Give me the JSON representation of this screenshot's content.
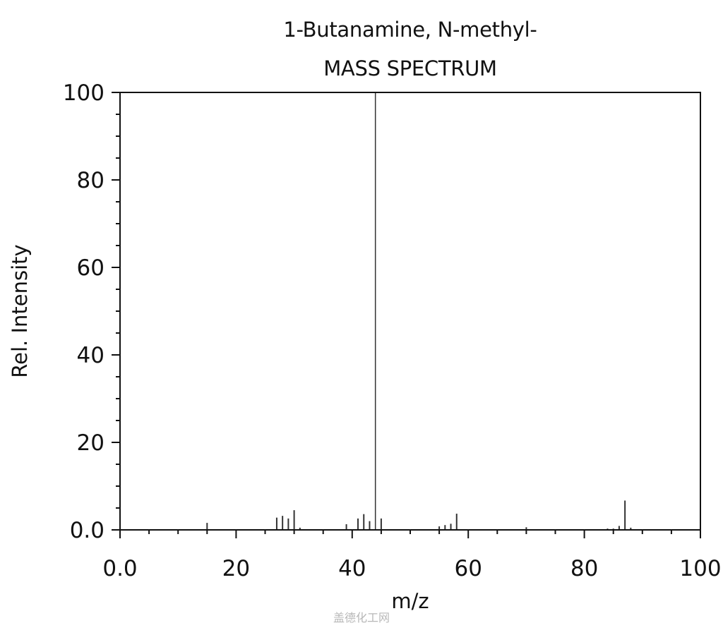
{
  "chart_data": {
    "type": "bar",
    "title": "1-Butanamine, N-methyl-",
    "subtitle": "MASS SPECTRUM",
    "xlabel": "m/z",
    "ylabel": "Rel. Intensity",
    "xlim": [
      0,
      100
    ],
    "ylim": [
      0,
      100
    ],
    "xticks": [
      0,
      20,
      40,
      60,
      80,
      100
    ],
    "xtick_labels": [
      "0.0",
      "20",
      "40",
      "60",
      "80",
      "100"
    ],
    "yticks": [
      0,
      20,
      40,
      60,
      80,
      100
    ],
    "ytick_labels": [
      "0.0",
      "20",
      "40",
      "60",
      "80",
      "100"
    ],
    "grid": false,
    "peaks": [
      {
        "mz": 15,
        "intensity": 1.6
      },
      {
        "mz": 27,
        "intensity": 2.8
      },
      {
        "mz": 28,
        "intensity": 3.2
      },
      {
        "mz": 29,
        "intensity": 2.6
      },
      {
        "mz": 30,
        "intensity": 4.5
      },
      {
        "mz": 31,
        "intensity": 0.5
      },
      {
        "mz": 39,
        "intensity": 1.3
      },
      {
        "mz": 41,
        "intensity": 2.6
      },
      {
        "mz": 42,
        "intensity": 3.6
      },
      {
        "mz": 43,
        "intensity": 2.0
      },
      {
        "mz": 44,
        "intensity": 100
      },
      {
        "mz": 45,
        "intensity": 2.6
      },
      {
        "mz": 55,
        "intensity": 0.8
      },
      {
        "mz": 56,
        "intensity": 1.1
      },
      {
        "mz": 57,
        "intensity": 1.4
      },
      {
        "mz": 58,
        "intensity": 3.7
      },
      {
        "mz": 70,
        "intensity": 0.6
      },
      {
        "mz": 84,
        "intensity": 0.3
      },
      {
        "mz": 85,
        "intensity": 0.3
      },
      {
        "mz": 86,
        "intensity": 0.9
      },
      {
        "mz": 87,
        "intensity": 6.7
      },
      {
        "mz": 88,
        "intensity": 0.5
      }
    ]
  },
  "watermark": "盖德化工网"
}
